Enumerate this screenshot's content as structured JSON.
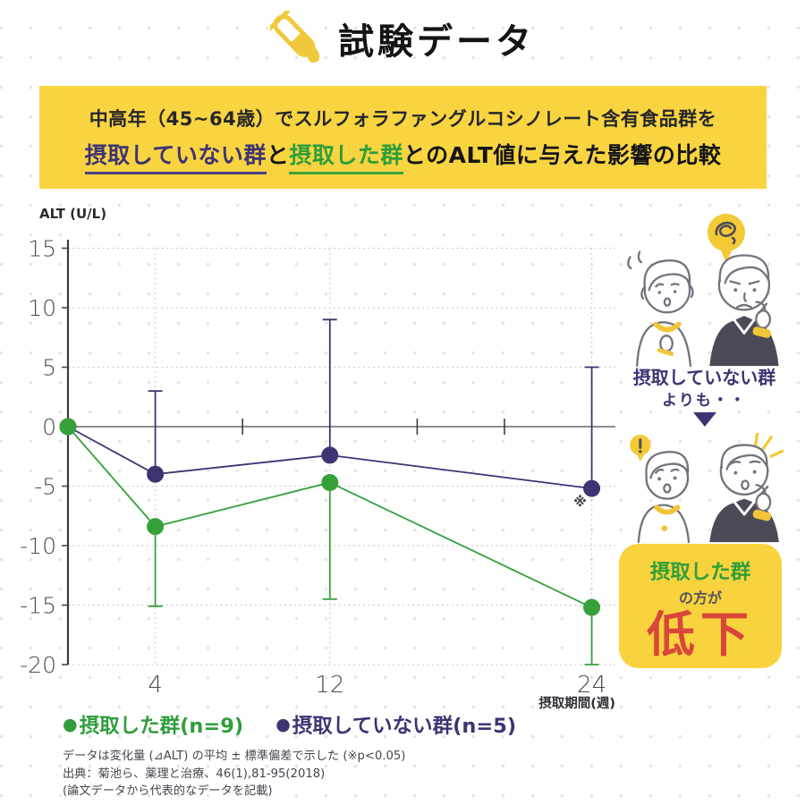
{
  "header": {
    "title": "試験データ",
    "icon": "test-tube-icon"
  },
  "banner": {
    "bg_color": "#f8d440",
    "line1": "中高年（45~64歳）でスルフォラファングルコシノレート含有食品群を",
    "line2": {
      "group_no_intake": "摂取していない群",
      "conj": "と",
      "group_intake": "摂取した群",
      "rest": "とのALT値に与えた影響の比較"
    }
  },
  "chart_data": {
    "type": "line",
    "title": "",
    "ylabel": "ALT (U/L)",
    "xlabel": "摂取期間(週)",
    "x": [
      0,
      4,
      12,
      24
    ],
    "x_gridlines": [
      4,
      12,
      24
    ],
    "x_tick_labels": [
      "4",
      "12",
      "24"
    ],
    "x_minor_ticks": [
      8,
      16,
      20
    ],
    "xlim": [
      0,
      25
    ],
    "ylim": [
      -20,
      15
    ],
    "y_ticks": [
      15,
      10,
      5,
      0,
      -5,
      -10,
      -15,
      -20
    ],
    "grid": "dashed",
    "legend_position": "bottom",
    "series": [
      {
        "name": "摂取した群(n=9)",
        "color": "#35a138",
        "values": [
          0,
          -8.4,
          -4.7,
          -15.2
        ],
        "err_low": [
          null,
          -15.1,
          -14.5,
          -20.0
        ]
      },
      {
        "name": "摂取していない群(n=5)",
        "color": "#3d3473",
        "values": [
          0,
          -4.0,
          -2.4,
          -5.2
        ],
        "err_high": [
          null,
          3.0,
          9.0,
          5.0
        ]
      }
    ],
    "significance": {
      "text": "※",
      "meaning": "p<0.05",
      "at_x": 24,
      "at_y": -5.2
    },
    "legend": [
      {
        "label": "摂取した群(n=9)",
        "color": "#2f9e3b"
      },
      {
        "label": "摂取していない群(n=5)",
        "color": "#3d3473"
      }
    ]
  },
  "notes": [
    "データは変化量 (⊿ALT) の平均 ± 標準偏差で示した (※p<0.05)",
    "出典：菊池ら、薬理と治療、46(1),81-95(2018)",
    "(論文データから代表的なデータを記載)"
  ],
  "aside": {
    "caption_top": "摂取していない群",
    "caption_sub": "よりも・・",
    "result_group": "摂取した群",
    "result_mid": "の方が",
    "result_big": "低下",
    "icons": [
      "confusion-bubble-icon",
      "exclamation-bubble-icon",
      "sparkles-icon",
      "down-triangle-icon"
    ]
  },
  "colors": {
    "banner_yellow": "#f8d440",
    "box_yellow": "#f8d33e",
    "green": "#2f9e3b",
    "purple": "#3d3473",
    "red": "#d9463c"
  }
}
